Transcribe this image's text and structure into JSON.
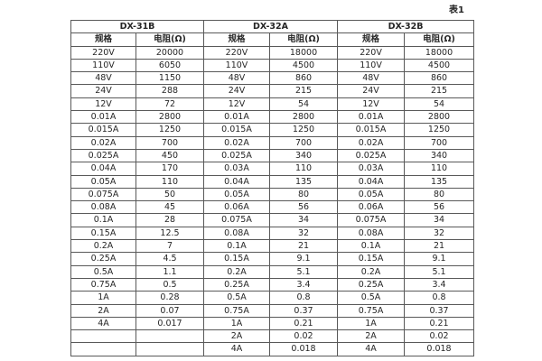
{
  "page": {
    "table_label": "表1"
  },
  "table": {
    "groups": [
      {
        "name": "DX-31B"
      },
      {
        "name": "DX-32A"
      },
      {
        "name": "DX-32B"
      }
    ],
    "col_headers": {
      "spec": "规格",
      "resistance": "电阻(Ω)"
    },
    "rows": [
      [
        "220V",
        "20000",
        "220V",
        "18000",
        "220V",
        "18000"
      ],
      [
        "110V",
        "6050",
        "110V",
        "4500",
        "110V",
        "4500"
      ],
      [
        "48V",
        "1150",
        "48V",
        "860",
        "48V",
        "860"
      ],
      [
        "24V",
        "288",
        "24V",
        "215",
        "24V",
        "215"
      ],
      [
        "12V",
        "72",
        "12V",
        "54",
        "12V",
        "54"
      ],
      [
        "0.01A",
        "2800",
        "0.01A",
        "2800",
        "0.01A",
        "2800"
      ],
      [
        "0.015A",
        "1250",
        "0.015A",
        "1250",
        "0.015A",
        "1250"
      ],
      [
        "0.02A",
        "700",
        "0.02A",
        "700",
        "0.02A",
        "700"
      ],
      [
        "0.025A",
        "450",
        "0.025A",
        "340",
        "0.025A",
        "340"
      ],
      [
        "0.04A",
        "170",
        "0.03A",
        "110",
        "0.03A",
        "110"
      ],
      [
        "0.05A",
        "110",
        "0.04A",
        "135",
        "0.04A",
        "135"
      ],
      [
        "0.075A",
        "50",
        "0.05A",
        "80",
        "0.05A",
        "80"
      ],
      [
        "0.08A",
        "45",
        "0.06A",
        "56",
        "0.06A",
        "56"
      ],
      [
        "0.1A",
        "28",
        "0.075A",
        "34",
        "0.075A",
        "34"
      ],
      [
        "0.15A",
        "12.5",
        "0.08A",
        "32",
        "0.08A",
        "32"
      ],
      [
        "0.2A",
        "7",
        "0.1A",
        "21",
        "0.1A",
        "21"
      ],
      [
        "0.25A",
        "4.5",
        "0.15A",
        "9.1",
        "0.15A",
        "9.1"
      ],
      [
        "0.5A",
        "1.1",
        "0.2A",
        "5.1",
        "0.2A",
        "5.1"
      ],
      [
        "0.75A",
        "0.5",
        "0.25A",
        "3.4",
        "0.25A",
        "3.4"
      ],
      [
        "1A",
        "0.28",
        "0.5A",
        "0.8",
        "0.5A",
        "0.8"
      ],
      [
        "2A",
        "0.07",
        "0.75A",
        "0.37",
        "0.75A",
        "0.37"
      ],
      [
        "4A",
        "0.017",
        "1A",
        "0.21",
        "1A",
        "0.21"
      ],
      [
        "",
        "",
        "2A",
        "0.02",
        "2A",
        "0.02"
      ],
      [
        "",
        "",
        "4A",
        "0.018",
        "4A",
        "0.018"
      ]
    ]
  }
}
